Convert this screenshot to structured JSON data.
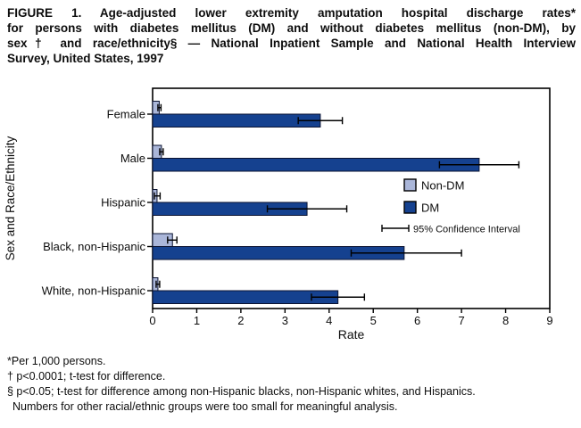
{
  "figure": {
    "title_lines": [
      "FIGURE 1. Age-adjusted lower extremity amputation hospital discharge rates*",
      "for persons with diabetes mellitus (DM) and without diabetes mellitus (non-DM), by",
      "sex† and race/ethnicity§ — National Inpatient Sample and National Health Interview",
      "Survey, United States, 1997"
    ],
    "footnotes": [
      "*Per 1,000 persons.",
      "† p<0.0001; t-test for difference.",
      "§ p<0.05; t-test for difference among non-Hispanic blacks, non-Hispanic whites, and Hispanics.",
      "Numbers for other racial/ethnic groups were too small for meaningful analysis."
    ]
  },
  "chart_data": {
    "type": "bar",
    "orientation": "horizontal",
    "title": "Age-adjusted lower extremity amputation hospital discharge rates, DM vs non-DM, United States, 1997",
    "xlabel": "Rate",
    "ylabel": "Sex and Race/Ethnicity",
    "xlim": [
      0,
      9
    ],
    "xticks": [
      0,
      1,
      2,
      3,
      4,
      5,
      6,
      7,
      8,
      9
    ],
    "grid": false,
    "categories": [
      "Female",
      "Male",
      "Hispanic",
      "Black, non-Hispanic",
      "White, non-Hispanic"
    ],
    "series": [
      {
        "name": "Non-DM",
        "color": "#aab6d9",
        "values": [
          0.15,
          0.2,
          0.1,
          0.45,
          0.12
        ],
        "ci_low": [
          0.12,
          0.16,
          0.04,
          0.34,
          0.08
        ],
        "ci_high": [
          0.19,
          0.24,
          0.17,
          0.55,
          0.16
        ]
      },
      {
        "name": "DM",
        "color": "#15418f",
        "values": [
          3.8,
          7.4,
          3.5,
          5.7,
          4.2
        ],
        "ci_low": [
          3.3,
          6.5,
          2.6,
          4.5,
          3.6
        ],
        "ci_high": [
          4.3,
          8.3,
          4.4,
          7.0,
          4.8
        ]
      }
    ],
    "legend": {
      "position": "inside-right",
      "ci_label": "95% Confidence Interval"
    },
    "colors": {
      "axis": "#000000",
      "error_bar": "#000000",
      "bar_border": "#0a1230"
    }
  }
}
